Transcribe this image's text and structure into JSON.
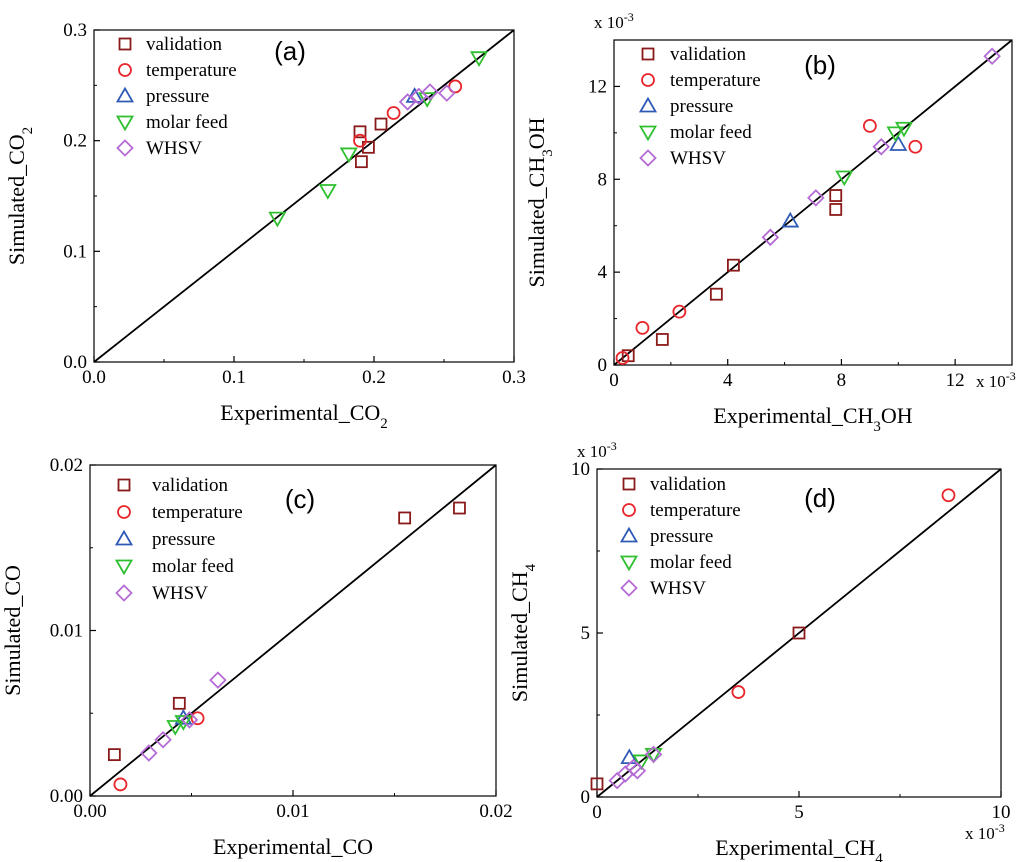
{
  "marker_colors": {
    "validation": "#8b1a1a",
    "temperature": "#e8262b",
    "pressure": "#2f5bb7",
    "molar feed": "#2fbf2f",
    "WHSV": "#b46bd4"
  },
  "marker_shapes": {
    "validation": "square",
    "temperature": "circle",
    "pressure": "triangle-up",
    "molar feed": "triangle-down",
    "WHSV": "diamond"
  },
  "chart_data": [
    {
      "type": "scatter",
      "panel_label": "(a)",
      "xlabel": "Experimental_CO",
      "xlabel_sub": "2",
      "xlabel_tail": "",
      "ylabel": "Simulated_CO",
      "ylabel_sub": "2",
      "ylabel_tail": "",
      "xlim": [
        0,
        0.3
      ],
      "ylim": [
        0,
        0.3
      ],
      "xticks": [
        0,
        0.1,
        0.2,
        0.3
      ],
      "yticks": [
        0,
        0.1,
        0.2,
        0.3
      ],
      "xtick_labels": [
        "0.0",
        "0.1",
        "0.2",
        "0.3"
      ],
      "ytick_labels": [
        "0.0",
        "0.1",
        "0.2",
        "0.3"
      ],
      "x_multiplier": "",
      "y_multiplier": "",
      "legend": [
        "validation",
        "temperature",
        "pressure",
        "molar feed",
        "WHSV"
      ],
      "legend_position": "top-left",
      "parity_line": true,
      "series": [
        {
          "name": "validation",
          "points": [
            [
              0.19,
              0.208
            ],
            [
              0.191,
              0.181
            ],
            [
              0.196,
              0.194
            ],
            [
              0.205,
              0.215
            ]
          ]
        },
        {
          "name": "temperature",
          "points": [
            [
              0.19,
              0.2
            ],
            [
              0.214,
              0.225
            ],
            [
              0.258,
              0.249
            ]
          ]
        },
        {
          "name": "pressure",
          "points": [
            [
              0.229,
              0.24
            ]
          ]
        },
        {
          "name": "molar feed",
          "points": [
            [
              0.131,
              0.13
            ],
            [
              0.167,
              0.155
            ],
            [
              0.182,
              0.188
            ],
            [
              0.238,
              0.238
            ],
            [
              0.275,
              0.275
            ]
          ]
        },
        {
          "name": "WHSV",
          "points": [
            [
              0.224,
              0.235
            ],
            [
              0.232,
              0.24
            ],
            [
              0.24,
              0.244
            ],
            [
              0.252,
              0.243
            ]
          ]
        }
      ]
    },
    {
      "type": "scatter",
      "panel_label": "(b)",
      "xlabel": "Experimental_CH",
      "xlabel_sub": "3",
      "xlabel_tail": "OH",
      "ylabel": "Simulated_CH",
      "ylabel_sub": "3",
      "ylabel_tail": "OH",
      "xlim": [
        0,
        14
      ],
      "ylim": [
        0,
        14
      ],
      "xticks": [
        0,
        4,
        8,
        12
      ],
      "yticks": [
        0,
        4,
        8,
        12
      ],
      "xtick_labels": [
        "0",
        "4",
        "8",
        "12"
      ],
      "ytick_labels": [
        "0",
        "4",
        "8",
        "12"
      ],
      "x_multiplier": "x 10",
      "x_multiplier_exp": "-3",
      "y_multiplier": "x 10",
      "y_multiplier_exp": "-3",
      "legend": [
        "validation",
        "temperature",
        "pressure",
        "molar feed",
        "WHSV"
      ],
      "legend_position": "top-left",
      "parity_line": true,
      "series": [
        {
          "name": "validation",
          "points": [
            [
              0.5,
              0.4
            ],
            [
              1.7,
              1.1
            ],
            [
              3.6,
              3.05
            ],
            [
              4.2,
              4.3
            ],
            [
              7.8,
              7.3
            ],
            [
              7.8,
              6.7
            ]
          ]
        },
        {
          "name": "temperature",
          "points": [
            [
              0.3,
              0.3
            ],
            [
              1.0,
              1.6
            ],
            [
              2.3,
              2.3
            ],
            [
              9.0,
              10.3
            ],
            [
              10.6,
              9.4
            ]
          ]
        },
        {
          "name": "pressure",
          "points": [
            [
              6.2,
              6.2
            ],
            [
              10.0,
              9.5
            ]
          ]
        },
        {
          "name": "molar feed",
          "points": [
            [
              8.1,
              8.1
            ],
            [
              9.9,
              10.0
            ],
            [
              10.2,
              10.2
            ]
          ]
        },
        {
          "name": "WHSV",
          "points": [
            [
              5.5,
              5.5
            ],
            [
              7.1,
              7.2
            ],
            [
              9.4,
              9.4
            ],
            [
              13.3,
              13.3
            ]
          ]
        }
      ]
    },
    {
      "type": "scatter",
      "panel_label": "(c)",
      "xlabel": "Experimental_CO",
      "xlabel_sub": "",
      "xlabel_tail": "",
      "ylabel": "Simulated_CO",
      "ylabel_sub": "",
      "ylabel_tail": "",
      "xlim": [
        0,
        0.02
      ],
      "ylim": [
        0,
        0.02
      ],
      "xticks": [
        0,
        0.01,
        0.02
      ],
      "yticks": [
        0,
        0.01,
        0.02
      ],
      "xtick_labels": [
        "0.00",
        "0.01",
        "0.02"
      ],
      "ytick_labels": [
        "0.00",
        "0.01",
        "0.02"
      ],
      "x_multiplier": "",
      "y_multiplier": "",
      "legend": [
        "validation",
        "temperature",
        "pressure",
        "molar feed",
        "WHSV"
      ],
      "legend_position": "top-left",
      "parity_line": true,
      "series": [
        {
          "name": "validation",
          "points": [
            [
              0.0012,
              0.0025
            ],
            [
              0.0044,
              0.0056
            ],
            [
              0.0155,
              0.0168
            ],
            [
              0.0182,
              0.0174
            ]
          ]
        },
        {
          "name": "temperature",
          "points": [
            [
              0.0015,
              0.0007
            ],
            [
              0.0053,
              0.0047
            ]
          ]
        },
        {
          "name": "pressure",
          "points": [
            [
              0.0046,
              0.0047
            ]
          ]
        },
        {
          "name": "molar feed",
          "points": [
            [
              0.0042,
              0.0042
            ],
            [
              0.0046,
              0.0045
            ]
          ]
        },
        {
          "name": "WHSV",
          "points": [
            [
              0.0029,
              0.0026
            ],
            [
              0.0036,
              0.0034
            ],
            [
              0.0049,
              0.0046
            ],
            [
              0.0063,
              0.007
            ]
          ]
        }
      ]
    },
    {
      "type": "scatter",
      "panel_label": "(d)",
      "xlabel": "Experimental_CH",
      "xlabel_sub": "4",
      "xlabel_tail": "",
      "ylabel": "Simulated_CH",
      "ylabel_sub": "4",
      "ylabel_tail": "",
      "xlim": [
        0,
        10
      ],
      "ylim": [
        0,
        10
      ],
      "xticks": [
        0,
        5,
        10
      ],
      "yticks": [
        0,
        5,
        10
      ],
      "xtick_labels": [
        "0",
        "5",
        "10"
      ],
      "ytick_labels": [
        "0",
        "5",
        "10"
      ],
      "x_multiplier": "x 10",
      "x_multiplier_exp": "-3",
      "y_multiplier": "x 10",
      "y_multiplier_exp": "-3",
      "legend": [
        "validation",
        "temperature",
        "pressure",
        "molar feed",
        "WHSV"
      ],
      "legend_position": "top-left",
      "parity_line": true,
      "series": [
        {
          "name": "validation",
          "points": [
            [
              0.0,
              0.4
            ],
            [
              5.0,
              5.0
            ]
          ]
        },
        {
          "name": "temperature",
          "points": [
            [
              3.5,
              3.2
            ],
            [
              8.7,
              9.2
            ]
          ]
        },
        {
          "name": "pressure",
          "points": [
            [
              0.8,
              1.2
            ]
          ]
        },
        {
          "name": "molar feed",
          "points": [
            [
              1.1,
              1.1
            ],
            [
              1.4,
              1.3
            ]
          ]
        },
        {
          "name": "WHSV",
          "points": [
            [
              0.5,
              0.5
            ],
            [
              0.7,
              0.7
            ],
            [
              0.9,
              0.9
            ],
            [
              1.0,
              0.8
            ],
            [
              1.4,
              1.3
            ]
          ]
        }
      ]
    }
  ]
}
